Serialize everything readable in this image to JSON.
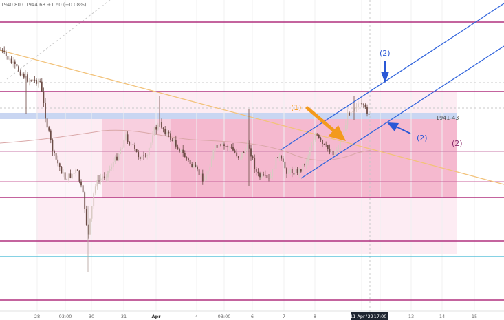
{
  "header": {
    "ohlc": "1940.80 C1944.68 +1.60 (+0.08%)"
  },
  "price_label": "1941-43",
  "annotations": {
    "orange": "(1)",
    "blue_top": "(2)",
    "blue_right": "(2)",
    "purple": "(2)"
  },
  "colors": {
    "magenta_line": "#b0307f",
    "cyan_line": "#3fb6d4",
    "zone_light": "#fde8f0",
    "zone_mid": "#f8c9da",
    "zone_dark": "#f3aec8",
    "blue_band": "#c9d6f2",
    "channel": "#3366dd",
    "trendline": "#f2c27a",
    "orange": "#f39a1d",
    "candle_up": "#d8c9c2",
    "candle_down": "#6b4b45"
  },
  "chart_data": {
    "type": "candlestick",
    "x_ticks": [
      "28",
      "03:00",
      "30",
      "31",
      "Apr",
      "4",
      "03:00",
      "6",
      "7",
      "8",
      "11 Apr '22",
      "17:00",
      "13",
      "14",
      "15"
    ],
    "price_label": "1941-43"
  }
}
